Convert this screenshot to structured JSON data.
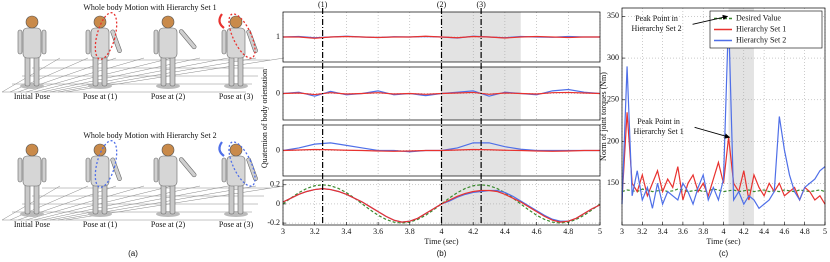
{
  "panel_a": {
    "label": "(a)",
    "rows": [
      {
        "title": "Whole body Motion with Hierarchy Set 1",
        "captions": [
          "Initial Pose",
          "Pose at (1)",
          "Pose at (2)",
          "Pose at (3)"
        ]
      },
      {
        "title": "Whole body Motion with Hierarchy Set 2",
        "captions": [
          "Initial Pose",
          "Pose at (1)",
          "Pose at (2)",
          "Pose at (3)"
        ]
      }
    ]
  },
  "chart_data": [
    {
      "type": "line",
      "ylabel": "Quaternion of body orientation",
      "vlines": [
        {
          "value": 3.25,
          "label": "(1)"
        },
        {
          "value": 4,
          "label": "(2)"
        },
        {
          "value": 4.25,
          "label": "(3)"
        }
      ],
      "span": [
        4,
        4.5
      ],
      "x": [
        3,
        3.1,
        3.2,
        3.3,
        3.4,
        3.5,
        3.6,
        3.7,
        3.8,
        3.9,
        4,
        4.1,
        4.2,
        4.3,
        4.4,
        4.5,
        4.6,
        4.7,
        4.8,
        4.9,
        5
      ],
      "ylim": [
        0.9,
        1.1
      ],
      "yticks": [
        1
      ],
      "series": [
        {
          "name": "Hierarchy Set 2",
          "color": "#4f6fe8",
          "values": [
            1,
            1.002,
            0.997,
            1,
            1.003,
            1,
            0.998,
            1.001,
            1,
            1.002,
            1,
            0.996,
            1.003,
            1,
            0.997,
            1.002,
            1,
            0.999,
            1.002,
            1,
            1
          ]
        },
        {
          "name": "Hierarchy Set 1",
          "color": "#e8322f",
          "values": [
            1,
            1,
            0.995,
            1,
            1.002,
            1,
            0.998,
            1,
            1,
            1.003,
            1,
            0.997,
            1.002,
            1,
            0.996,
            1,
            1.002,
            1,
            0.998,
            1,
            1
          ]
        }
      ]
    },
    {
      "type": "line",
      "x": [
        3,
        3.1,
        3.2,
        3.3,
        3.4,
        3.5,
        3.6,
        3.7,
        3.8,
        3.9,
        4,
        4.1,
        4.2,
        4.3,
        4.4,
        4.5,
        4.6,
        4.7,
        4.8,
        4.9,
        5
      ],
      "ylim": [
        -0.1,
        0.1
      ],
      "yticks": [
        0
      ],
      "series": [
        {
          "name": "Hierarchy Set 2",
          "color": "#4f6fe8",
          "values": [
            0,
            0.005,
            -0.01,
            0.008,
            -0.005,
            0,
            0.01,
            -0.005,
            0,
            -0.008,
            0,
            0.005,
            0.01,
            -0.01,
            0.005,
            0,
            -0.005,
            0.01,
            0.015,
            0.005,
            0
          ]
        },
        {
          "name": "Hierarchy Set 1",
          "color": "#e8322f",
          "values": [
            0,
            0.002,
            -0.004,
            0.003,
            -0.002,
            0,
            0.003,
            -0.002,
            0,
            -0.003,
            0,
            0.002,
            0.004,
            -0.003,
            0.002,
            0,
            -0.002,
            0.003,
            0.004,
            0.002,
            0
          ]
        }
      ]
    },
    {
      "type": "line",
      "x": [
        3,
        3.1,
        3.2,
        3.3,
        3.4,
        3.5,
        3.6,
        3.7,
        3.8,
        3.9,
        4,
        4.1,
        4.2,
        4.3,
        4.4,
        4.5,
        4.6,
        4.7,
        4.8,
        4.9,
        5
      ],
      "ylim": [
        -0.1,
        0.1
      ],
      "yticks": [
        0
      ],
      "series": [
        {
          "name": "Hierarchy Set 2",
          "color": "#4f6fe8",
          "values": [
            0,
            0.01,
            0.025,
            0.03,
            0.02,
            0.01,
            0,
            0,
            -0.005,
            0,
            0,
            0.01,
            0.03,
            0.03,
            0.015,
            0.005,
            0,
            0,
            0,
            0,
            0
          ]
        },
        {
          "name": "Hierarchy Set 1",
          "color": "#e8322f",
          "values": [
            0,
            0.002,
            0.004,
            0.003,
            0.001,
            0,
            -0.002,
            -0.003,
            -0.002,
            0,
            0,
            0.002,
            0.004,
            0.003,
            0.001,
            0,
            -0.002,
            -0.003,
            -0.002,
            0,
            0
          ]
        }
      ]
    },
    {
      "type": "line",
      "panel_label": "(b)",
      "xlabel": "Time (sec)",
      "x": [
        3,
        3.05,
        3.1,
        3.15,
        3.2,
        3.25,
        3.3,
        3.35,
        3.4,
        3.45,
        3.5,
        3.55,
        3.6,
        3.65,
        3.7,
        3.75,
        3.8,
        3.85,
        3.9,
        3.95,
        4,
        4.05,
        4.1,
        4.15,
        4.2,
        4.25,
        4.3,
        4.35,
        4.4,
        4.45,
        4.5,
        4.55,
        4.6,
        4.65,
        4.7,
        4.75,
        4.8,
        4.85,
        4.9,
        4.95,
        5
      ],
      "xlim": [
        3,
        5
      ],
      "xticks": [
        3,
        3.2,
        3.4,
        3.6,
        3.8,
        4,
        4.2,
        4.4,
        4.6,
        4.8,
        5
      ],
      "ylim": [
        -0.22,
        0.25
      ],
      "yticks": [
        -0.2,
        0,
        0.2
      ],
      "series": [
        {
          "name": "Desired Value",
          "color": "#3a8a2e",
          "dashed": true,
          "values": [
            0,
            0.062,
            0.118,
            0.162,
            0.19,
            0.2,
            0.19,
            0.162,
            0.118,
            0.062,
            0,
            -0.062,
            -0.118,
            -0.162,
            -0.19,
            -0.2,
            -0.19,
            -0.162,
            -0.118,
            -0.062,
            0,
            0.062,
            0.118,
            0.162,
            0.19,
            0.2,
            0.19,
            0.162,
            0.118,
            0.062,
            0,
            -0.062,
            -0.118,
            -0.162,
            -0.19,
            -0.2,
            -0.19,
            -0.162,
            -0.118,
            -0.062,
            0
          ]
        },
        {
          "name": "Hierarchy Set 2",
          "color": "#4f6fe8",
          "values": [
            0.02,
            0.06,
            0.1,
            0.13,
            0.15,
            0.16,
            0.15,
            0.13,
            0.1,
            0.06,
            0.02,
            -0.03,
            -0.08,
            -0.13,
            -0.17,
            -0.19,
            -0.18,
            -0.15,
            -0.1,
            -0.05,
            0,
            0.03,
            0.07,
            0.1,
            0.12,
            0.13,
            0.14,
            0.14,
            0.12,
            0.08,
            0.03,
            -0.02,
            -0.07,
            -0.12,
            -0.16,
            -0.18,
            -0.18,
            -0.15,
            -0.1,
            -0.05,
            -0.01
          ]
        },
        {
          "name": "Hierarchy Set 1",
          "color": "#e8322f",
          "values": [
            0.02,
            0.06,
            0.1,
            0.13,
            0.15,
            0.16,
            0.15,
            0.13,
            0.1,
            0.06,
            0.02,
            -0.03,
            -0.08,
            -0.13,
            -0.17,
            -0.19,
            -0.18,
            -0.15,
            -0.1,
            -0.05,
            0,
            0.04,
            0.08,
            0.11,
            0.13,
            0.14,
            0.14,
            0.13,
            0.1,
            0.06,
            0.02,
            -0.03,
            -0.08,
            -0.13,
            -0.17,
            -0.19,
            -0.18,
            -0.15,
            -0.1,
            -0.05,
            -0.01
          ]
        }
      ]
    },
    {
      "type": "line",
      "panel_label": "(c)",
      "xlabel": "Time (sec)",
      "ylabel": "Norm of joint torques (Nm)",
      "span": [
        4.05,
        4.3
      ],
      "x": [
        3,
        3.05,
        3.1,
        3.15,
        3.2,
        3.25,
        3.3,
        3.35,
        3.4,
        3.45,
        3.5,
        3.55,
        3.6,
        3.65,
        3.7,
        3.75,
        3.8,
        3.85,
        3.9,
        3.95,
        4,
        4.05,
        4.1,
        4.15,
        4.2,
        4.25,
        4.3,
        4.35,
        4.4,
        4.45,
        4.5,
        4.55,
        4.6,
        4.65,
        4.7,
        4.75,
        4.8,
        4.85,
        4.9,
        4.95,
        5
      ],
      "xlim": [
        3,
        5
      ],
      "xticks": [
        3,
        3.2,
        3.4,
        3.6,
        3.8,
        4,
        4.2,
        4.4,
        4.6,
        4.8,
        5
      ],
      "ylim": [
        100,
        360
      ],
      "yticks": [
        150,
        200,
        250,
        300,
        350
      ],
      "legend": "upper-right",
      "annotations": [
        {
          "lines": [
            "Peak Point in",
            "Hierarchy Set 2"
          ],
          "xy": [
            4.05,
            350
          ]
        },
        {
          "lines": [
            "Peak Point in",
            "Hierarchy Set 1"
          ],
          "xy": [
            4.07,
            205
          ]
        }
      ],
      "series": [
        {
          "name": "Desired Value",
          "color": "#3a8a2e",
          "dashed": true,
          "values": [
            140,
            142,
            141,
            140,
            143,
            142,
            140,
            141,
            142,
            140,
            141,
            143,
            142,
            140,
            141,
            142,
            140,
            141,
            143,
            142,
            140,
            141,
            142,
            140,
            141,
            142,
            140,
            141,
            142,
            140,
            141,
            140,
            142,
            141,
            140,
            142,
            141,
            140,
            141,
            142,
            140
          ]
        },
        {
          "name": "Hierarchy Set 1",
          "color": "#e8322f",
          "values": [
            130,
            235,
            150,
            140,
            160,
            135,
            150,
            165,
            140,
            155,
            145,
            170,
            130,
            150,
            160,
            140,
            150,
            135,
            155,
            175,
            150,
            205,
            150,
            140,
            165,
            130,
            160,
            145,
            135,
            150,
            140,
            150,
            135,
            140,
            145,
            130,
            145,
            140,
            130,
            135,
            125
          ]
        },
        {
          "name": "Hierarchy Set 2",
          "color": "#4f6fe8",
          "values": [
            125,
            290,
            135,
            165,
            130,
            145,
            120,
            150,
            125,
            140,
            135,
            130,
            150,
            140,
            125,
            145,
            160,
            130,
            145,
            130,
            155,
            350,
            130,
            140,
            125,
            135,
            130,
            120,
            125,
            130,
            140,
            230,
            190,
            160,
            140,
            130,
            145,
            150,
            155,
            165,
            170
          ]
        }
      ]
    }
  ]
}
